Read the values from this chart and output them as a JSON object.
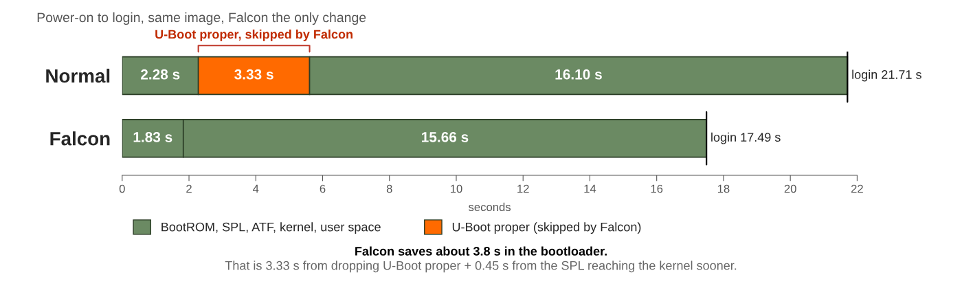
{
  "chart_data": {
    "type": "bar",
    "orientation": "horizontal",
    "stacked": true,
    "title": "Power-on to login, same image, Falcon the only change",
    "categories": [
      "Normal",
      "Falcon"
    ],
    "series": [
      {
        "name": "BootROM, SPL, ATF, kernel, user space",
        "color": "#6b8a63",
        "values": [
          2.28,
          1.83
        ],
        "value_labels": [
          "2.28 s",
          "1.83 s"
        ]
      },
      {
        "name": "U-Boot proper (skipped by Falcon)",
        "color": "#ff6a00",
        "values": [
          3.33,
          null
        ],
        "value_labels": [
          "3.33 s",
          null
        ]
      },
      {
        "color": "#6b8a63",
        "values": [
          16.1,
          15.66
        ],
        "value_labels": [
          "16.10 s",
          "15.66 s"
        ]
      }
    ],
    "totals": [
      "login 21.71 s",
      "login 17.49 s"
    ],
    "xlabel": "seconds",
    "xlim": [
      0,
      22
    ],
    "xticks": [
      0,
      2,
      4,
      6,
      8,
      10,
      12,
      14,
      16,
      18,
      20,
      22
    ],
    "grid": false,
    "legend": "bottom left",
    "annotations": [
      "U-Boot proper, skipped by Falcon",
      "Falcon saves about 3.8 s in the bootloader.",
      "That is 3.33 s from dropping U-Boot proper + 0.45 s from the SPL reaching the kernel sooner."
    ]
  }
}
